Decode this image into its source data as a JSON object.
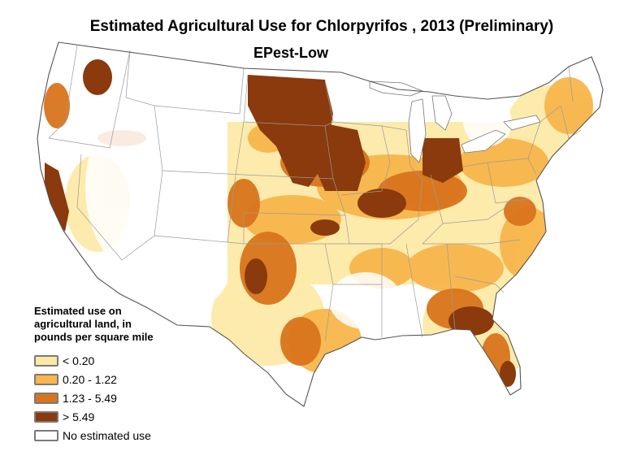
{
  "header": {
    "title": "Estimated Agricultural Use for Chlorpyrifos , 2013 (Preliminary)",
    "subtitle": "EPest-Low"
  },
  "legend": {
    "title_lines": [
      "Estimated use on",
      "agricultural land, in",
      "pounds per square mile"
    ],
    "items": [
      {
        "label": "< 0.20",
        "color": "#fde9a4"
      },
      {
        "label": "0.20 - 1.22",
        "color": "#f8b64c"
      },
      {
        "label": "1.23 - 5.49",
        "color": "#d9741c"
      },
      {
        "label": "> 5.49",
        "color": "#8a3a0c"
      },
      {
        "label": "No estimated use",
        "color": "#ffffff"
      }
    ]
  },
  "map": {
    "region": "conterminous-united-states",
    "boundary_color": "#9a9a9a",
    "outline_color": "#555555",
    "water_color": "#ffffff"
  }
}
